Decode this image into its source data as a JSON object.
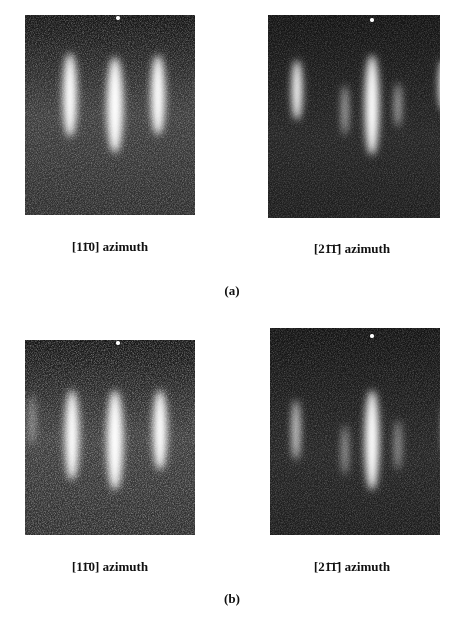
{
  "panels": [
    {
      "label": "(a)",
      "images": [
        {
          "caption": "[11̄0] azimuth"
        },
        {
          "caption": "[21̄1̄] azimuth"
        }
      ]
    },
    {
      "label": "(b)",
      "images": [
        {
          "caption": "[11̄0] azimuth"
        },
        {
          "caption": "[21̄1̄] azimuth"
        }
      ]
    }
  ]
}
